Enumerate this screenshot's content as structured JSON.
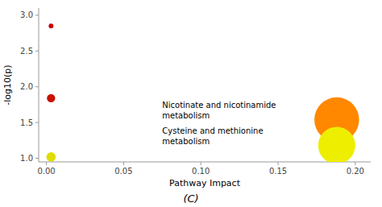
{
  "chart_data": {
    "type": "scatter",
    "title": "(C)",
    "x_label": "Pathway Impact",
    "y_label": "-log10(p)",
    "x": [
      0.003,
      0.003,
      0.003,
      0.188,
      0.188
    ],
    "values": [
      2.85,
      1.84,
      1.02,
      1.54,
      1.18
    ],
    "sizes": [
      18,
      55,
      70,
      1600,
      1100
    ],
    "colors": [
      "#cc0000",
      "#cc1100",
      "#dddd00",
      "#ff8800",
      "#eeee00"
    ],
    "xlim": [
      -0.005,
      0.21
    ],
    "ylim": [
      0.95,
      3.1
    ],
    "xticks": [
      {
        "value": 0.0,
        "label": "0.00"
      },
      0.05,
      {
        "value": 0.1,
        "label": "0.10"
      },
      0.15,
      {
        "value": 0.2,
        "label": "0.20"
      }
    ],
    "yticks": [
      {
        "value": 1.0,
        "label": "1.0"
      },
      1.5,
      {
        "value": 2.0,
        "label": "2.0"
      },
      2.5,
      {
        "value": 3.0,
        "label": "3.0"
      }
    ],
    "annotations": [
      {
        "text": "Nicotinate and nicotinamide\nmetabolism",
        "x": 0.075,
        "y": 1.67
      },
      {
        "text": "Cysteine and methionine\nmetabolism",
        "x": 0.075,
        "y": 1.31
      }
    ]
  }
}
